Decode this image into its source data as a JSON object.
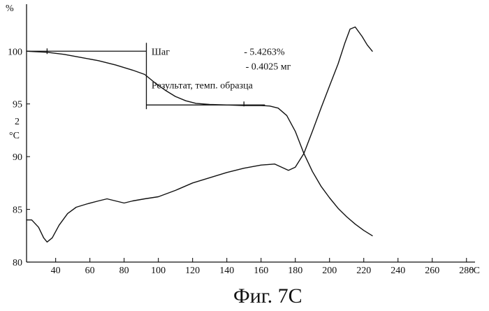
{
  "chart_data": {
    "type": "line",
    "caption": "Фиг. 7C",
    "x_unit_label": "°C",
    "y_unit_percent": "%",
    "y_unit_temp_prefix": "2",
    "y_unit_temp": "°C",
    "xlim": [
      23,
      285
    ],
    "ylim": [
      80,
      103
    ],
    "x_ticks": [
      {
        "v": 40,
        "label": "40"
      },
      {
        "v": 60,
        "label": "60"
      },
      {
        "v": 80,
        "label": "80"
      },
      {
        "v": 100,
        "label": "100"
      },
      {
        "v": 120,
        "label": "120"
      },
      {
        "v": 140,
        "label": "140"
      },
      {
        "v": 160,
        "label": "160"
      },
      {
        "v": 180,
        "label": "180"
      },
      {
        "v": 200,
        "label": "200"
      },
      {
        "v": 220,
        "label": "220"
      },
      {
        "v": 240,
        "label": "240"
      },
      {
        "v": 260,
        "label": "260"
      },
      {
        "v": 280,
        "label": "280"
      }
    ],
    "y_ticks": [
      {
        "v": 80,
        "label": "80"
      },
      {
        "v": 85,
        "label": "85"
      },
      {
        "v": 90,
        "label": "90"
      },
      {
        "v": 95,
        "label": "95"
      },
      {
        "v": 100,
        "label": "100"
      }
    ],
    "series": [
      {
        "points": [
          [
            23,
            100.0
          ],
          [
            35,
            99.9
          ],
          [
            45,
            99.7
          ],
          [
            55,
            99.4
          ],
          [
            65,
            99.1
          ],
          [
            75,
            98.7
          ],
          [
            85,
            98.2
          ],
          [
            92,
            97.8
          ],
          [
            98,
            97.0
          ],
          [
            104,
            96.3
          ],
          [
            110,
            95.7
          ],
          [
            116,
            95.3
          ],
          [
            122,
            95.05
          ],
          [
            130,
            94.95
          ],
          [
            140,
            94.9
          ],
          [
            150,
            94.85
          ],
          [
            160,
            94.85
          ],
          [
            165,
            94.8
          ],
          [
            170,
            94.6
          ],
          [
            175,
            93.9
          ],
          [
            180,
            92.4
          ],
          [
            185,
            90.3
          ],
          [
            190,
            88.6
          ],
          [
            195,
            87.2
          ],
          [
            200,
            86.1
          ],
          [
            205,
            85.1
          ],
          [
            210,
            84.3
          ],
          [
            215,
            83.6
          ],
          [
            220,
            83.0
          ],
          [
            225,
            82.5
          ]
        ]
      },
      {
        "points": [
          [
            23,
            84.0
          ],
          [
            26,
            84.0
          ],
          [
            30,
            83.3
          ],
          [
            33,
            82.3
          ],
          [
            35,
            81.9
          ],
          [
            38,
            82.3
          ],
          [
            42,
            83.5
          ],
          [
            47,
            84.6
          ],
          [
            52,
            85.2
          ],
          [
            58,
            85.5
          ],
          [
            65,
            85.8
          ],
          [
            70,
            86.0
          ],
          [
            75,
            85.8
          ],
          [
            80,
            85.6
          ],
          [
            85,
            85.8
          ],
          [
            92,
            86.0
          ],
          [
            100,
            86.2
          ],
          [
            110,
            86.8
          ],
          [
            120,
            87.5
          ],
          [
            130,
            88.0
          ],
          [
            140,
            88.5
          ],
          [
            150,
            88.9
          ],
          [
            160,
            89.2
          ],
          [
            168,
            89.3
          ],
          [
            172,
            89.0
          ],
          [
            176,
            88.7
          ],
          [
            180,
            89.0
          ],
          [
            185,
            90.3
          ],
          [
            190,
            92.4
          ],
          [
            195,
            94.6
          ],
          [
            200,
            96.7
          ],
          [
            205,
            98.8
          ],
          [
            209,
            100.8
          ],
          [
            212,
            102.1
          ],
          [
            215,
            102.3
          ],
          [
            219,
            101.4
          ],
          [
            222,
            100.6
          ],
          [
            225,
            100.0
          ]
        ]
      }
    ],
    "step": {
      "start_x": 93,
      "end_x": 150,
      "upper_y": 100.0,
      "lower_y": 94.9,
      "upper_x_from": 23,
      "lower_x_from": 93
    },
    "annotations": [
      {
        "text": "Шаг",
        "x": 96,
        "y": 100.0
      },
      {
        "text": "- 5.4263%",
        "x": 150,
        "y": 100.0
      },
      {
        "text": "- 0.4025 мг",
        "x": 151,
        "y": 98.6
      },
      {
        "text": "Результат, темп. образца",
        "x": 96,
        "y": 96.8
      }
    ]
  }
}
